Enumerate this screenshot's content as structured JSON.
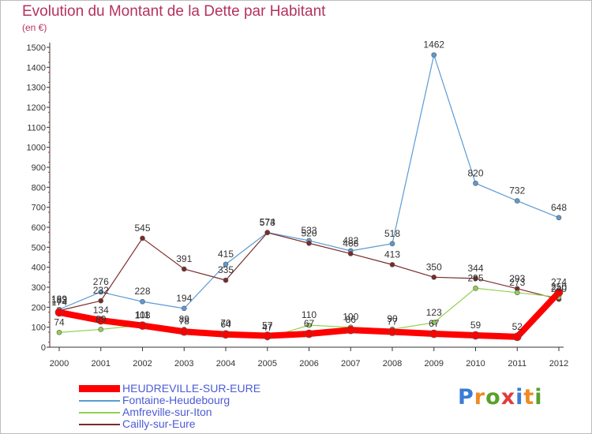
{
  "chart_data": {
    "type": "line",
    "title": "Evolution du Montant de la Dette par Habitant",
    "unit_label": "(en €)",
    "categories": [
      "2000",
      "2001",
      "2002",
      "2003",
      "2004",
      "2005",
      "2006",
      "2007",
      "2008",
      "2009",
      "2010",
      "2011",
      "2012"
    ],
    "ylim": [
      0,
      1500
    ],
    "yticks": [
      0,
      100,
      200,
      300,
      400,
      500,
      600,
      700,
      800,
      900,
      1000,
      1100,
      1200,
      1300,
      1400,
      1500
    ],
    "grid": false,
    "legend_position": "bottom-left",
    "series": [
      {
        "name": "HEUDREVILLE-SUR-EURE",
        "color": "#ff0000",
        "values": [
          174,
          134,
          108,
          78,
          64,
          57,
          67,
          86,
          77,
          67,
          59,
          52,
          274
        ]
      },
      {
        "name": "Fontaine-Heudebourg",
        "color": "#5b9bd5",
        "values": [
          189,
          276,
          228,
          194,
          415,
          574,
          533,
          482,
          518,
          1462,
          820,
          732,
          648
        ]
      },
      {
        "name": "Amfreville-sur-Iton",
        "color": "#92d050",
        "values": [
          74,
          89,
          111,
          89,
          70,
          47,
          110,
          100,
          90,
          123,
          295,
          273,
          250
        ]
      },
      {
        "name": "Cailly-sur-Eure",
        "color": "#7b2a2a",
        "values": [
          183,
          232,
          545,
          391,
          335,
          573,
          520,
          468,
          413,
          350,
          344,
          293,
          240
        ]
      }
    ]
  },
  "logo": {
    "text": "Proxiti"
  }
}
